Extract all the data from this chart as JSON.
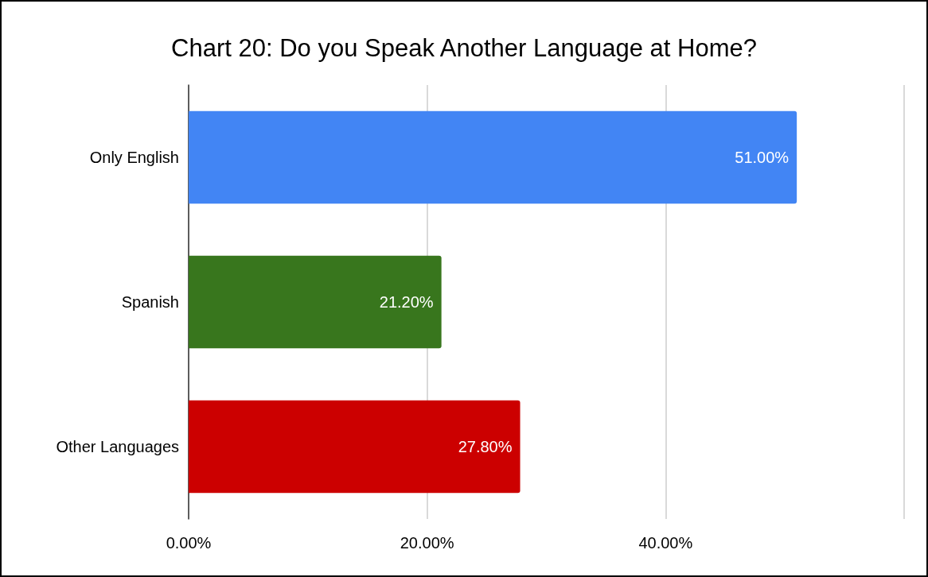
{
  "chart_data": {
    "type": "bar",
    "orientation": "horizontal",
    "title": "Chart 20: Do you Speak Another Language at Home?",
    "categories": [
      "Only English",
      "Spanish",
      "Other Languages"
    ],
    "values": [
      51,
      21.2,
      27.8
    ],
    "colors": [
      "#4285f4",
      "#38761d",
      "#cc0000"
    ],
    "value_labels": [
      "51.00%",
      "21.20%",
      "27.80%"
    ],
    "xlim": [
      0,
      60
    ],
    "xticks": [
      {
        "value": 0,
        "label": "0.00%"
      },
      {
        "value": 20,
        "label": "20.00%"
      },
      {
        "value": 40,
        "label": "40.00%"
      },
      {
        "value": 60,
        "label": null
      }
    ],
    "grid": "x"
  }
}
